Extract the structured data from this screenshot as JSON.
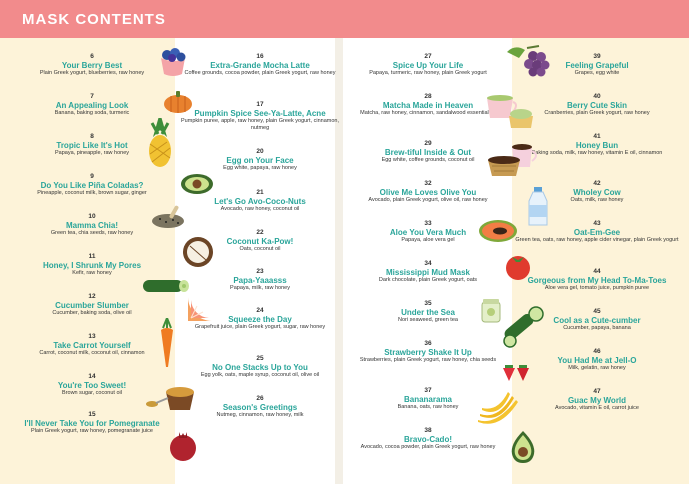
{
  "title": "MASK CONTENTS",
  "entries": [
    {
      "num": "6",
      "name": "Your Berry Best",
      "ing": "Plain Greek yogurt, blueberries, raw honey"
    },
    {
      "num": "7",
      "name": "An Appealing Look",
      "ing": "Banana, baking soda, turmeric"
    },
    {
      "num": "8",
      "name": "Tropic Like It's Hot",
      "ing": "Papaya, pineapple, raw honey"
    },
    {
      "num": "9",
      "name": "Do You Like Piña Coladas?",
      "ing": "Pineapple, coconut milk, brown sugar, ginger"
    },
    {
      "num": "10",
      "name": "Mamma Chia!",
      "ing": "Green tea, chia seeds, raw honey"
    },
    {
      "num": "11",
      "name": "Honey, I Shrunk My Pores",
      "ing": "Kefir, raw honey"
    },
    {
      "num": "12",
      "name": "Cucumber Slumber",
      "ing": "Cucumber, baking soda, olive oil"
    },
    {
      "num": "13",
      "name": "Take Carrot Yourself",
      "ing": "Carrot, coconut milk, coconut oil, cinnamon"
    },
    {
      "num": "14",
      "name": "You're Too Sweet!",
      "ing": "Brown sugar, coconut oil"
    },
    {
      "num": "15",
      "name": "I'll Never Take You for Pomegranate",
      "ing": "Plain Greek yogurt, raw honey, pomegranate juice"
    },
    {
      "num": "16",
      "name": "Extra-Grande Mocha Latte",
      "ing": "Coffee grounds, cocoa powder, plain Greek yogurt, raw honey"
    },
    {
      "num": "17",
      "name": "Pumpkin Spice See-Ya-Latte, Acne",
      "ing": "Pumpkin puree, apple, raw honey, plain Greek yogurt, cinnamon, nutmeg"
    },
    {
      "num": "20",
      "name": "Egg on Your Face",
      "ing": "Egg white, papaya, raw honey"
    },
    {
      "num": "21",
      "name": "Let's Go Avo-Coco-Nuts",
      "ing": "Avocado, raw honey, coconut oil"
    },
    {
      "num": "22",
      "name": "Coconut Ka-Pow!",
      "ing": "Oats, coconut oil"
    },
    {
      "num": "23",
      "name": "Papa-Yaaasss",
      "ing": "Papaya, milk, raw honey"
    },
    {
      "num": "24",
      "name": "Squeeze the Day",
      "ing": "Grapefruit juice, plain Greek yogurt, sugar, raw honey"
    },
    {
      "num": "25",
      "name": "No One Stacks Up to You",
      "ing": "Egg yolk, oats, maple syrup, coconut oil, olive oil"
    },
    {
      "num": "26",
      "name": "Season's Greetings",
      "ing": "Nutmeg, cinnamon, raw honey, milk"
    },
    {
      "num": "27",
      "name": "Spice Up Your Life",
      "ing": "Papaya, turmeric, raw honey, plain Greek yogurt"
    },
    {
      "num": "28",
      "name": "Matcha Made in Heaven",
      "ing": "Matcha, raw honey, cinnamon, sandalwood essential oil"
    },
    {
      "num": "29",
      "name": "Brew-tiful Inside & Out",
      "ing": "Egg white, coffee grounds, coconut oil"
    },
    {
      "num": "32",
      "name": "Olive Me Loves Olive You",
      "ing": "Avocado, plain Greek yogurt, olive oil, raw honey"
    },
    {
      "num": "33",
      "name": "Aloe You Vera Much",
      "ing": "Papaya, aloe vera gel"
    },
    {
      "num": "34",
      "name": "Mississippi Mud Mask",
      "ing": "Dark chocolate, plain Greek yogurt, oats"
    },
    {
      "num": "35",
      "name": "Under the Sea",
      "ing": "Nori seaweed, green tea"
    },
    {
      "num": "36",
      "name": "Strawberry Shake It Up",
      "ing": "Strawberries, plain Greek yogurt, raw honey, chia seeds"
    },
    {
      "num": "37",
      "name": "Bananarama",
      "ing": "Banana, oats, raw honey"
    },
    {
      "num": "38",
      "name": "Bravo-Cado!",
      "ing": "Avocado, cocoa powder, plain Greek yogurt, raw honey"
    },
    {
      "num": "39",
      "name": "Feeling Grapeful",
      "ing": "Grapes, egg white"
    },
    {
      "num": "40",
      "name": "Berry Cute Skin",
      "ing": "Cranberries, plain Greek yogurt, raw honey"
    },
    {
      "num": "41",
      "name": "Honey Bun",
      "ing": "Baking soda, milk, raw honey, vitamin E oil, cinnamon"
    },
    {
      "num": "42",
      "name": "Wholey Cow",
      "ing": "Oats, milk, raw honey"
    },
    {
      "num": "43",
      "name": "Oat-Em-Gee",
      "ing": "Green tea, oats, raw honey, apple cider vinegar, plain Greek yogurt"
    },
    {
      "num": "44",
      "name": "Gorgeous from My Head To-Ma-Toes",
      "ing": "Aloe vera gel, tomato juice, pumpkin puree"
    },
    {
      "num": "45",
      "name": "Cool as a Cute-cumber",
      "ing": "Cucumber, papaya, banana"
    },
    {
      "num": "46",
      "name": "You Had Me at Jell-O",
      "ing": "Milk, gelatin, raw honey"
    },
    {
      "num": "47",
      "name": "Guac My World",
      "ing": "Avocado, vitamin E oil, carrot juice"
    }
  ],
  "illustrations": [
    "blueberries-icon",
    "pumpkin-icon",
    "pineapple-icon",
    "avocado-icon",
    "chia-seeds-icon",
    "coconut-icon",
    "cucumber-icon",
    "carrot-icon",
    "brown-sugar-icon",
    "pomegranate-icon",
    "grapefruit-icon",
    "grapes-icon",
    "matcha-cup-icon",
    "coffee-cup-icon",
    "coffee-grounds-icon",
    "milk-bottle-icon",
    "papaya-icon",
    "tomato-icon",
    "aloe-jar-icon",
    "cucumber-slices-icon",
    "strawberries-icon",
    "bananas-icon",
    "avocado-half-icon"
  ],
  "colors": {
    "header": "#f28b8c",
    "title_text": "#ffffff",
    "entry_name": "#2aa59a",
    "cream_band": "#fdf3d9"
  }
}
